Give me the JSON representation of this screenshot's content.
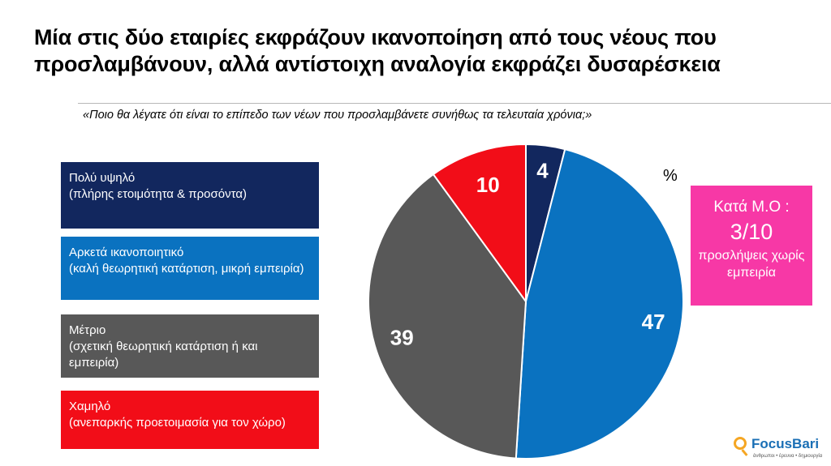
{
  "title": "Μία στις δύο εταιρίες εκφράζουν ικανοποίηση από τους νέους που προσλαμβάνουν, αλλά αντίστοιχη αναλογία εκφράζει δυσαρέσκεια",
  "question": "«Ποιο θα λέγατε ότι είναι το επίπεδο των νέων που προσλαμβάνετε συνήθως τα τελευταία χρόνια;»",
  "legend": [
    {
      "label": "Πολύ υψηλό",
      "detail": "(πλήρης ετοιμότητα & προσόντα)",
      "color": "#12275e"
    },
    {
      "label": "Αρκετά ικανοποιητικό",
      "detail": "(καλή θεωρητική κατάρτιση, μικρή εμπειρία)",
      "color": "#0a72c0"
    },
    {
      "label": "Μέτριο",
      "detail": "(σχετική θεωρητική κατάρτιση ή και εμπειρία)",
      "color": "#585858"
    },
    {
      "label": "Χαμηλό",
      "detail": "(ανεπαρκής προετοιμασία για τον χώρο)",
      "color": "#f20d18"
    }
  ],
  "unit": "%",
  "callout": {
    "line1": "Κατά Μ.Ο :",
    "line2": "3/10",
    "line3": "προσλήψεις χωρίς εμπειρία",
    "color": "#f738a6"
  },
  "logo": {
    "name": "FocusBari",
    "tagline": "άνθρωποι • έρευνα • δημιουργία",
    "icon": "magnifier-icon"
  },
  "chart_data": {
    "type": "pie",
    "categories": [
      "Πολύ υψηλό",
      "Αρκετά ικανοποιητικό",
      "Μέτριο",
      "Χαμηλό"
    ],
    "values": [
      4,
      47,
      39,
      10
    ],
    "colors": [
      "#12275e",
      "#0a72c0",
      "#585858",
      "#f20d18"
    ],
    "start": "12 o'clock",
    "direction": "clockwise"
  }
}
